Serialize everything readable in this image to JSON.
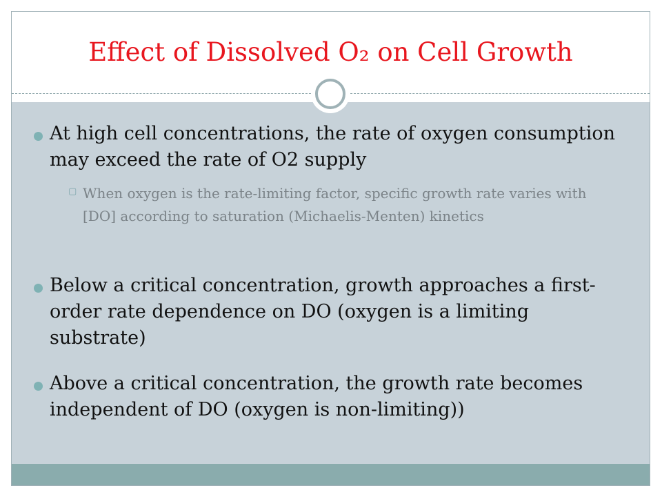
{
  "slide": {
    "title": "Effect of Dissolved O₂ on Cell Growth",
    "bullets": [
      {
        "text": "At high cell concentrations, the rate of oxygen consumption may exceed the rate of O2 supply",
        "sub": [
          "When oxygen is the rate-limiting factor, specific growth rate varies with [DO] according to saturation (Michaelis-Menten) kinetics"
        ]
      },
      {
        "text": "Below a critical concentration, growth approaches a first-order rate dependence on DO (oxygen is a limiting substrate)"
      },
      {
        "text": "Above a critical concentration, the growth rate becomes independent of DO (oxygen is non-limiting))"
      }
    ],
    "sub_marker_icon": "square-o-bullet"
  },
  "colors": {
    "title": "#e8161e",
    "content_background": "#c7d2d9",
    "footer_bar": "#8aacad",
    "bullet_dot": "#7fb2b4",
    "sub_text": "#7b8388"
  }
}
